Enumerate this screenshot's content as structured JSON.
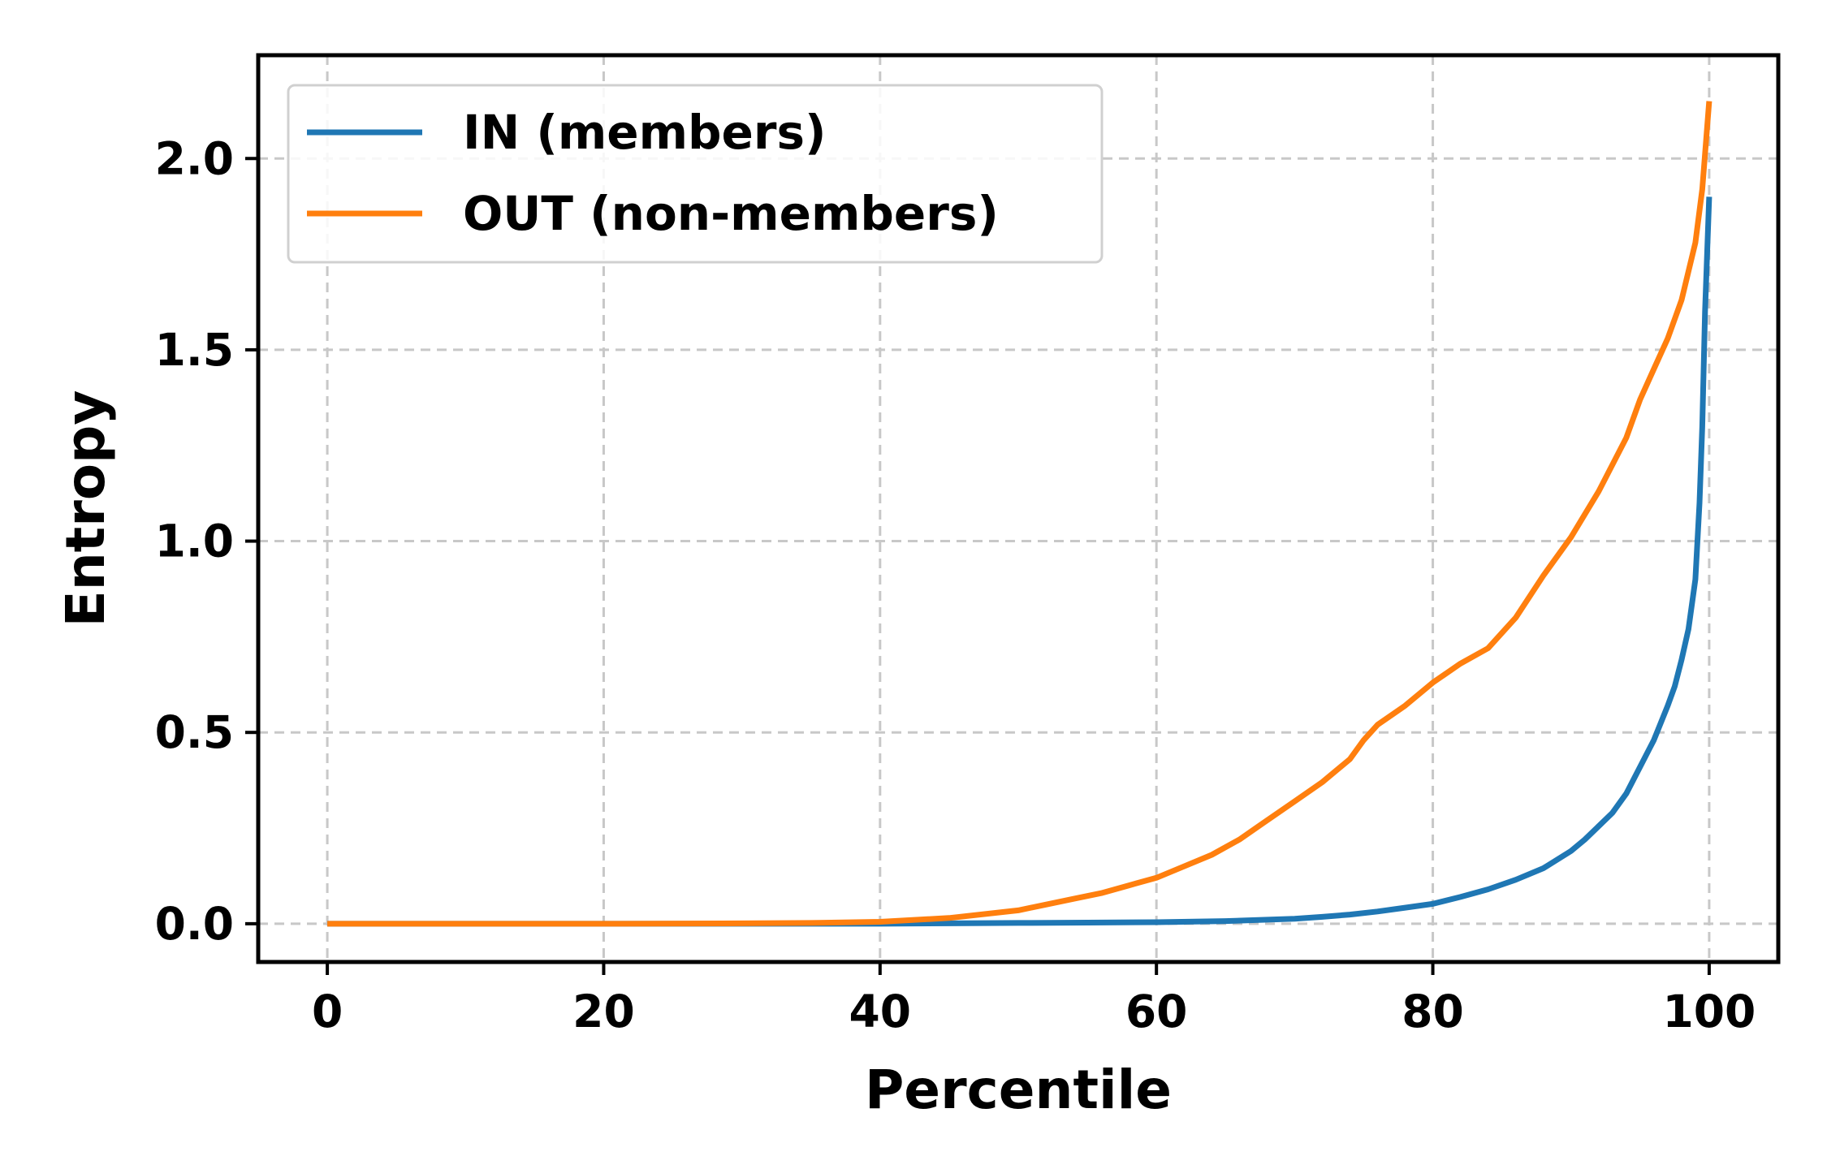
{
  "chart_data": {
    "type": "line",
    "title": "",
    "xlabel": "Percentile",
    "ylabel": "Entropy",
    "xlim": [
      -5,
      105
    ],
    "ylim": [
      -0.1,
      2.27
    ],
    "xticks": [
      0,
      20,
      40,
      60,
      80,
      100
    ],
    "yticks": [
      0.0,
      0.5,
      1.0,
      1.5,
      2.0
    ],
    "xtick_labels": [
      "0",
      "20",
      "40",
      "60",
      "80",
      "100"
    ],
    "ytick_labels": [
      "0.0",
      "0.5",
      "1.0",
      "1.5",
      "2.0"
    ],
    "grid": true,
    "legend_position": "top-left",
    "series": [
      {
        "name": "IN (members)",
        "color": "#1f77b4",
        "x": [
          0,
          10,
          20,
          30,
          40,
          45,
          50,
          55,
          60,
          65,
          70,
          72,
          74,
          76,
          78,
          80,
          82,
          84,
          86,
          88,
          90,
          91,
          92,
          93,
          94,
          95,
          96,
          97,
          97.5,
          98,
          98.5,
          99,
          99.3,
          99.5,
          99.7,
          99.9,
          100
        ],
        "y": [
          0.0,
          0.0,
          0.0,
          0.0,
          0.0,
          0.001,
          0.002,
          0.003,
          0.004,
          0.007,
          0.013,
          0.018,
          0.024,
          0.032,
          0.042,
          0.052,
          0.07,
          0.09,
          0.115,
          0.145,
          0.19,
          0.22,
          0.255,
          0.29,
          0.34,
          0.41,
          0.48,
          0.57,
          0.62,
          0.69,
          0.77,
          0.9,
          1.1,
          1.3,
          1.6,
          1.8,
          1.9
        ]
      },
      {
        "name": "OUT (non-members)",
        "color": "#ff7f0e",
        "x": [
          0,
          10,
          20,
          30,
          35,
          40,
          45,
          50,
          52,
          54,
          56,
          58,
          60,
          62,
          64,
          66,
          68,
          70,
          72,
          74,
          75,
          76,
          78,
          80,
          82,
          84,
          86,
          88,
          90,
          92,
          94,
          95,
          96,
          97,
          98,
          99,
          99.5,
          100
        ],
        "y": [
          0.0,
          0.0,
          0.0,
          0.001,
          0.002,
          0.005,
          0.015,
          0.035,
          0.05,
          0.065,
          0.08,
          0.1,
          0.12,
          0.15,
          0.18,
          0.22,
          0.27,
          0.32,
          0.37,
          0.43,
          0.48,
          0.52,
          0.57,
          0.63,
          0.68,
          0.72,
          0.8,
          0.91,
          1.01,
          1.13,
          1.27,
          1.37,
          1.45,
          1.53,
          1.63,
          1.78,
          1.92,
          2.15
        ]
      }
    ]
  }
}
